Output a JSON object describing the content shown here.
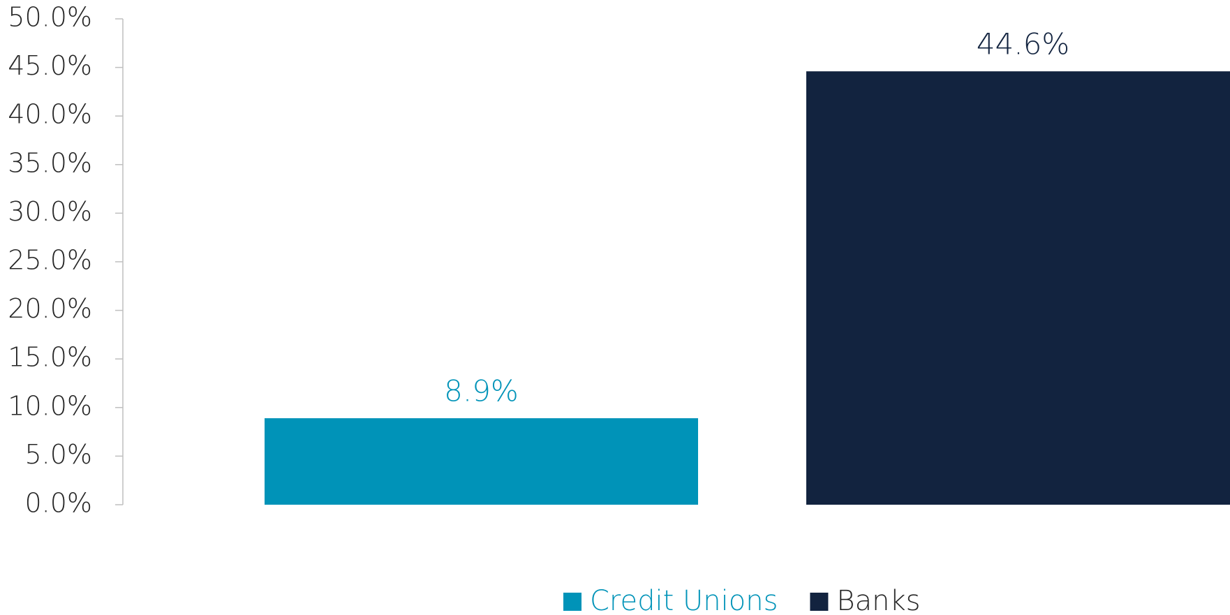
{
  "chart_data": {
    "type": "bar",
    "categories": [
      null
    ],
    "series": [
      {
        "name": "Credit Unions",
        "color": "#0093b8",
        "values": [
          8.9
        ],
        "value_labels": [
          "8.9%"
        ]
      },
      {
        "name": "Banks",
        "color": "#12233f",
        "values": [
          44.6
        ],
        "value_labels": [
          "44.6%"
        ]
      }
    ],
    "ylim": [
      0,
      50
    ],
    "yticks": [
      {
        "value": 0,
        "label": "0.0%"
      },
      {
        "value": 5,
        "label": "5.0%"
      },
      {
        "value": 10,
        "label": "10.0%"
      },
      {
        "value": 15,
        "label": "15.0%"
      },
      {
        "value": 20,
        "label": "20.0%"
      },
      {
        "value": 25,
        "label": "25.0%"
      },
      {
        "value": 30,
        "label": "30.0%"
      },
      {
        "value": 35,
        "label": "35.0%"
      },
      {
        "value": 40,
        "label": "40.0%"
      },
      {
        "value": 45,
        "label": "45.0%"
      },
      {
        "value": 50,
        "label": "50.0%"
      }
    ],
    "grid": false,
    "legend": "bottom"
  }
}
